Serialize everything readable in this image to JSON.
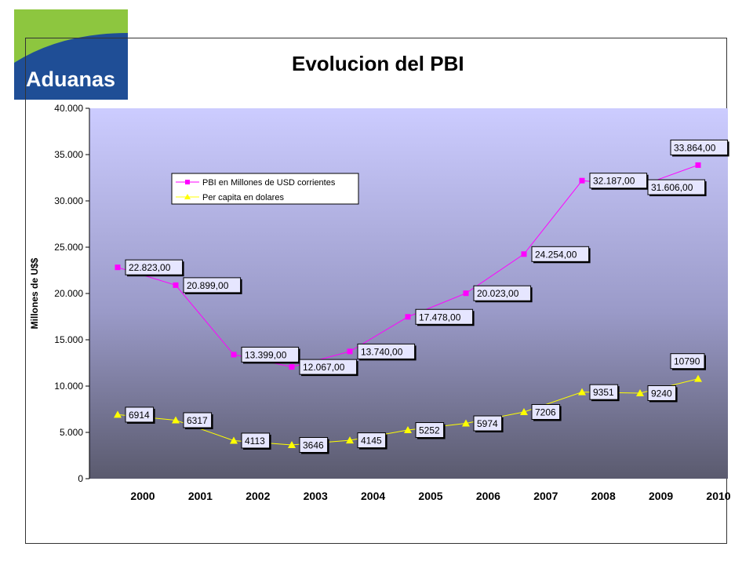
{
  "logo": {
    "text": "Aduanas",
    "green": "#8dc63f",
    "blue": "#1f4e96"
  },
  "chart_data": {
    "type": "line",
    "title": "Evolucion del PBI",
    "xlabel": "",
    "ylabel": "Millones de U$$",
    "categories": [
      "2000",
      "2001",
      "2002",
      "2003",
      "2004",
      "2005",
      "2006",
      "2007",
      "2008",
      "2009",
      "2010"
    ],
    "ylim": [
      0,
      40000
    ],
    "yticks": [
      "0",
      "5.000",
      "10.000",
      "15.000",
      "20.000",
      "25.000",
      "30.000",
      "35.000",
      "40.000"
    ],
    "grid": false,
    "legend_position": "upper-left",
    "series": [
      {
        "name": "PBI en  Millones de USD corrientes",
        "color": "#ff00ff",
        "marker": "square",
        "values": [
          22823,
          20899,
          13399,
          12067,
          13740,
          17478,
          20023,
          24254,
          32187,
          31606,
          33864
        ],
        "labels": [
          "22.823,00",
          "20.899,00",
          "13.399,00",
          "12.067,00",
          "13.740,00",
          "17.478,00",
          "20.023,00",
          "24.254,00",
          "32.187,00",
          "31.606,00",
          "33.864,00"
        ]
      },
      {
        "name": "Per capita en dolares",
        "color": "#ffff00",
        "marker": "triangle",
        "values": [
          6914,
          6317,
          4113,
          3646,
          4145,
          5252,
          5974,
          7206,
          9351,
          9240,
          10790
        ],
        "labels": [
          "6914",
          "6317",
          "4113",
          "3646",
          "4145",
          "5252",
          "5974",
          "7206",
          "9351",
          "9240",
          "10790"
        ]
      }
    ]
  }
}
